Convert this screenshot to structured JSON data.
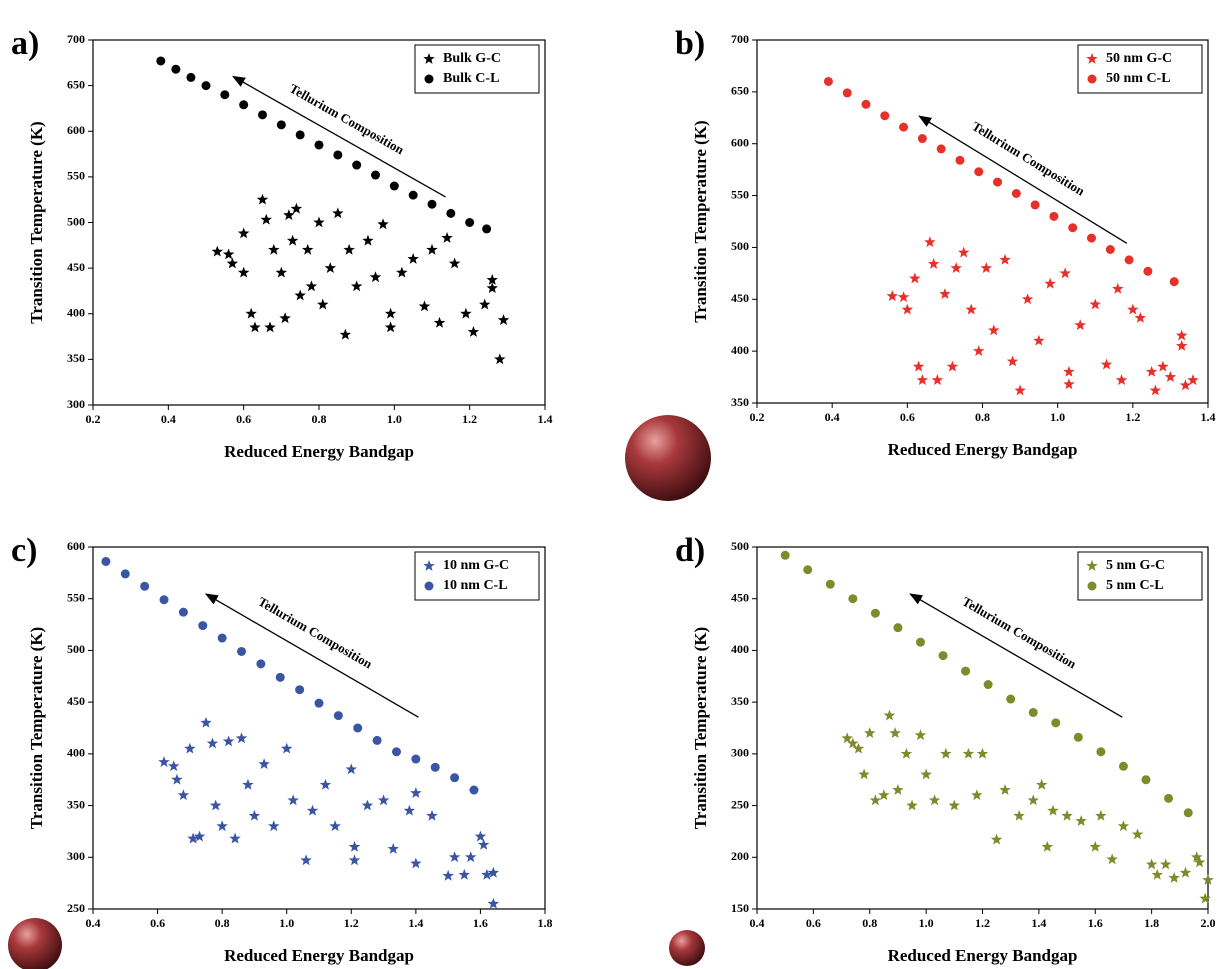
{
  "chart_data": [
    {
      "type": "scatter",
      "panel_label": "a)",
      "xlabel": "Reduced Energy Bandgap",
      "ylabel": "Transition Temperature (K)",
      "annotation": "Tellurium Composition",
      "xlim": [
        0.2,
        1.4
      ],
      "xticks": [
        0.2,
        0.4,
        0.6,
        0.8,
        {
          "value": 1,
          "label": "1.0"
        },
        1.2,
        1.4
      ],
      "ylim": [
        300,
        700
      ],
      "yticks": [
        300,
        350,
        400,
        450,
        500,
        550,
        600,
        650,
        700
      ],
      "series": [
        {
          "name": "Bulk G-C",
          "color": "#000000",
          "marker": "star",
          "x": [
            0.53,
            0.56,
            0.57,
            0.6,
            0.6,
            0.62,
            0.63,
            0.65,
            0.66,
            0.67,
            0.68,
            0.7,
            0.71,
            0.72,
            0.73,
            0.74,
            0.75,
            0.77,
            0.78,
            0.8,
            0.81,
            0.83,
            0.85,
            0.87,
            0.88,
            0.9,
            0.93,
            0.95,
            0.97,
            0.99,
            0.99,
            1.02,
            1.05,
            1.08,
            1.1,
            1.12,
            1.14,
            1.16,
            1.19,
            1.21,
            1.24,
            1.26,
            1.26,
            1.28,
            1.29
          ],
          "y": [
            468,
            465,
            455,
            445,
            488,
            400,
            385,
            525,
            503,
            385,
            470,
            445,
            395,
            508,
            480,
            515,
            420,
            470,
            430,
            500,
            410,
            450,
            510,
            377,
            470,
            430,
            480,
            440,
            498,
            400,
            385,
            445,
            460,
            408,
            470,
            390,
            483,
            455,
            400,
            380,
            410,
            437,
            428,
            350,
            393
          ]
        },
        {
          "name": "Bulk C-L",
          "color": "#000000",
          "marker": "circle",
          "x": [
            0.38,
            0.42,
            0.46,
            0.5,
            0.55,
            0.6,
            0.65,
            0.7,
            0.75,
            0.8,
            0.85,
            0.9,
            0.95,
            1.0,
            1.05,
            1.1,
            1.15,
            1.2,
            1.245
          ],
          "y": [
            677,
            668,
            659,
            650,
            640,
            629,
            618,
            607,
            596,
            585,
            574,
            563,
            552,
            540,
            530,
            520,
            510,
            500,
            493
          ]
        }
      ]
    },
    {
      "type": "scatter",
      "panel_label": "b)",
      "xlabel": "Reduced Energy Bandgap",
      "ylabel": "Transition Temperature (K)",
      "annotation": "Tellurium Composition",
      "xlim": [
        0.2,
        1.4
      ],
      "xticks": [
        0.2,
        0.4,
        0.6,
        0.8,
        {
          "value": 1,
          "label": "1.0"
        },
        1.2,
        1.4
      ],
      "ylim": [
        350,
        700
      ],
      "yticks": [
        350,
        400,
        450,
        500,
        550,
        600,
        650,
        700
      ],
      "series": [
        {
          "name": "50 nm G-C",
          "color": "#e8302a",
          "marker": "star",
          "x": [
            0.56,
            0.59,
            0.6,
            0.62,
            0.63,
            0.64,
            0.66,
            0.67,
            0.68,
            0.7,
            0.72,
            0.73,
            0.75,
            0.77,
            0.79,
            0.81,
            0.83,
            0.86,
            0.88,
            0.9,
            0.92,
            0.95,
            0.98,
            1.02,
            1.03,
            1.03,
            1.06,
            1.1,
            1.13,
            1.16,
            1.17,
            1.2,
            1.22,
            1.25,
            1.26,
            1.28,
            1.3,
            1.33,
            1.33,
            1.34,
            1.36
          ],
          "y": [
            453,
            452,
            440,
            470,
            385,
            372,
            505,
            484,
            372,
            455,
            385,
            480,
            495,
            440,
            400,
            480,
            420,
            488,
            390,
            362,
            450,
            410,
            465,
            475,
            380,
            368,
            425,
            445,
            387,
            460,
            372,
            440,
            432,
            380,
            362,
            385,
            375,
            415,
            405,
            367,
            372
          ]
        },
        {
          "name": "50 nm C-L",
          "color": "#e8302a",
          "marker": "circle",
          "x": [
            0.39,
            0.44,
            0.49,
            0.54,
            0.59,
            0.64,
            0.69,
            0.74,
            0.79,
            0.84,
            0.89,
            0.94,
            0.99,
            1.04,
            1.09,
            1.14,
            1.19,
            1.24,
            1.31
          ],
          "y": [
            660,
            649,
            638,
            627,
            616,
            605,
            595,
            584,
            573,
            563,
            552,
            541,
            530,
            519,
            509,
            498,
            488,
            477,
            467
          ]
        }
      ]
    },
    {
      "type": "scatter",
      "panel_label": "c)",
      "xlabel": "Reduced Energy Bandgap",
      "ylabel": "Transition Temperature (K)",
      "annotation": "Tellurium Composition",
      "xlim": [
        0.4,
        1.8
      ],
      "xticks": [
        0.4,
        0.6,
        0.8,
        {
          "value": 1,
          "label": "1.0"
        },
        1.2,
        1.4,
        1.6,
        1.8
      ],
      "ylim": [
        250,
        600
      ],
      "yticks": [
        250,
        300,
        350,
        400,
        450,
        500,
        550,
        600
      ],
      "series": [
        {
          "name": "10 nm G-C",
          "color": "#3a55a4",
          "marker": "star",
          "x": [
            0.62,
            0.65,
            0.66,
            0.68,
            0.7,
            0.71,
            0.73,
            0.75,
            0.77,
            0.78,
            0.8,
            0.82,
            0.84,
            0.86,
            0.88,
            0.9,
            0.93,
            0.96,
            1.0,
            1.02,
            1.06,
            1.08,
            1.12,
            1.15,
            1.2,
            1.21,
            1.21,
            1.25,
            1.3,
            1.33,
            1.38,
            1.4,
            1.4,
            1.45,
            1.5,
            1.52,
            1.55,
            1.57,
            1.6,
            1.61,
            1.62,
            1.64,
            1.64
          ],
          "y": [
            392,
            388,
            375,
            360,
            405,
            318,
            320,
            430,
            410,
            350,
            330,
            412,
            318,
            415,
            370,
            340,
            390,
            330,
            405,
            355,
            297,
            345,
            370,
            330,
            385,
            310,
            297,
            350,
            355,
            308,
            345,
            362,
            294,
            340,
            282,
            300,
            283,
            300,
            320,
            312,
            283,
            285,
            255
          ]
        },
        {
          "name": "10 nm C-L",
          "color": "#3a55a4",
          "marker": "circle",
          "x": [
            0.44,
            0.5,
            0.56,
            0.62,
            0.68,
            0.74,
            0.8,
            0.86,
            0.92,
            0.98,
            1.04,
            1.1,
            1.16,
            1.22,
            1.28,
            1.34,
            1.4,
            1.46,
            1.52,
            1.58
          ],
          "y": [
            586,
            574,
            562,
            549,
            537,
            524,
            512,
            499,
            487,
            474,
            462,
            449,
            437,
            425,
            413,
            402,
            395,
            387,
            377,
            365
          ]
        }
      ]
    },
    {
      "type": "scatter",
      "panel_label": "d)",
      "xlabel": "Reduced Energy Bandgap",
      "ylabel": "Transition Temperature (K)",
      "annotation": "Tellurium Composition",
      "xlim": [
        0.4,
        2.0
      ],
      "xticks": [
        0.4,
        0.6,
        0.8,
        {
          "value": 1,
          "label": "1.0"
        },
        1.2,
        1.4,
        1.6,
        1.8,
        {
          "value": 2,
          "label": "2.0"
        }
      ],
      "ylim": [
        150,
        500
      ],
      "yticks": [
        150,
        200,
        250,
        300,
        350,
        400,
        450,
        500
      ],
      "series": [
        {
          "name": "5 nm G-C",
          "color": "#7f8a2b",
          "marker": "star",
          "x": [
            0.72,
            0.74,
            0.76,
            0.78,
            0.8,
            0.82,
            0.85,
            0.87,
            0.89,
            0.9,
            0.93,
            0.95,
            0.98,
            1.0,
            1.03,
            1.07,
            1.1,
            1.15,
            1.18,
            1.2,
            1.25,
            1.28,
            1.33,
            1.38,
            1.41,
            1.43,
            1.45,
            1.5,
            1.55,
            1.6,
            1.62,
            1.66,
            1.7,
            1.75,
            1.8,
            1.82,
            1.85,
            1.88,
            1.92,
            1.96,
            1.97,
            2.0,
            1.99
          ],
          "y": [
            315,
            310,
            305,
            280,
            320,
            255,
            260,
            337,
            320,
            265,
            300,
            250,
            318,
            280,
            255,
            300,
            250,
            300,
            260,
            300,
            217,
            265,
            240,
            255,
            270,
            210,
            245,
            240,
            235,
            210,
            240,
            198,
            230,
            222,
            193,
            183,
            193,
            180,
            185,
            200,
            195,
            178,
            160
          ]
        },
        {
          "name": "5 nm C-L",
          "color": "#7f8a2b",
          "marker": "circle",
          "x": [
            0.5,
            0.58,
            0.66,
            0.74,
            0.82,
            0.9,
            0.98,
            1.06,
            1.14,
            1.22,
            1.3,
            1.38,
            1.46,
            1.54,
            1.62,
            1.7,
            1.78,
            1.86,
            1.93
          ],
          "y": [
            492,
            478,
            464,
            450,
            436,
            422,
            408,
            395,
            380,
            367,
            353,
            340,
            330,
            316,
            302,
            288,
            275,
            257,
            243
          ]
        }
      ]
    }
  ]
}
